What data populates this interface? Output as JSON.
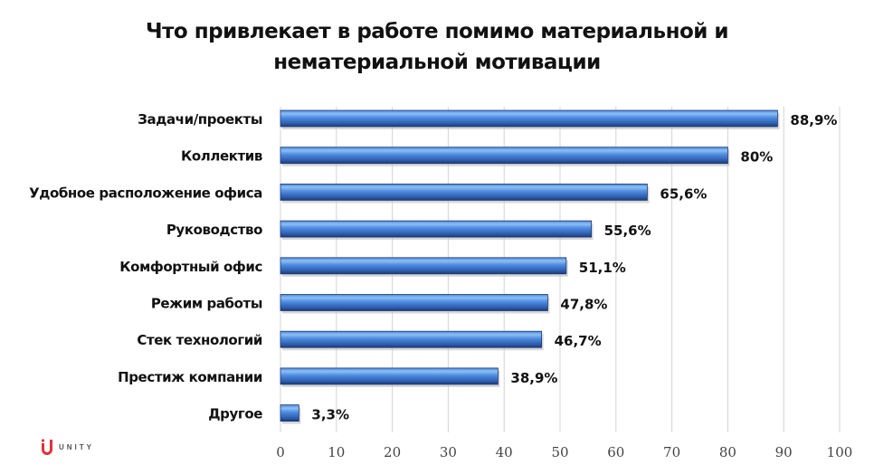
{
  "chart_data": {
    "type": "bar",
    "orientation": "horizontal",
    "title": "Что привлекает в работе помимо материальной и нематериальной мотивации",
    "title_lines": [
      "Что привлекает в работе помимо материальной и",
      "нематериальной мотивации"
    ],
    "categories": [
      "Задачи/проекты",
      "Коллектив",
      "Удобное расположение офиса",
      "Руководство",
      "Комфортный офис",
      "Режим работы",
      "Стек технологий",
      "Престиж компании",
      "Другое"
    ],
    "values": [
      88.9,
      80,
      65.6,
      55.6,
      51.1,
      47.8,
      46.7,
      38.9,
      3.3
    ],
    "data_labels": [
      "88,9%",
      "80%",
      "65,6%",
      "55,6%",
      "51,1%",
      "47,8%",
      "46,7%",
      "38,9%",
      "3,3%"
    ],
    "xlim": [
      0,
      100
    ],
    "x_ticks": [
      0,
      10,
      20,
      30,
      40,
      50,
      60,
      70,
      80,
      90,
      100
    ],
    "grid": true,
    "bar_color": "#3a6fc4",
    "xlabel": "",
    "ylabel": ""
  },
  "logo": {
    "text": "UNITY",
    "color": "#e0313a"
  }
}
